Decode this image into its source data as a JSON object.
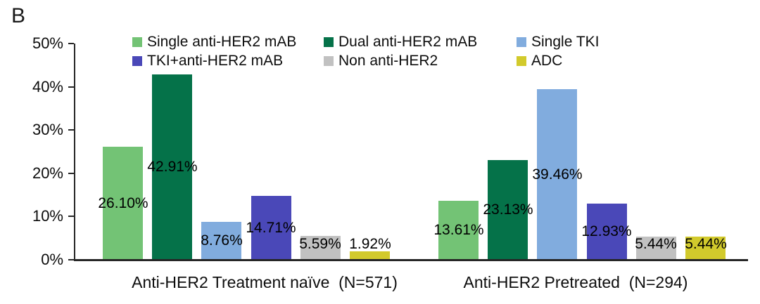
{
  "panel_label": "B",
  "chart_data": {
    "type": "bar",
    "title": "",
    "xlabel": "",
    "ylabel": "",
    "ylim": [
      0,
      50
    ],
    "ytick_labels": [
      "0%",
      "10%",
      "20%",
      "30%",
      "40%",
      "50%"
    ],
    "grid": false,
    "legend_position": "top",
    "categories": [
      "Anti-HER2 Treatment naïve  (N=571)",
      "Anti-HER2 Pretreated  (N=294)"
    ],
    "series": [
      {
        "name": "Single anti-HER2 mAB",
        "color": "#73C375",
        "values": [
          26.1,
          13.61
        ],
        "labels": [
          "26.10%",
          "13.61%"
        ]
      },
      {
        "name": "Dual anti-HER2 mAB",
        "color": "#057249",
        "values": [
          42.91,
          23.13
        ],
        "labels": [
          "42.91%",
          "23.13%"
        ]
      },
      {
        "name": "Single TKI",
        "color": "#81ACDE",
        "values": [
          8.76,
          39.46
        ],
        "labels": [
          "8.76%",
          "39.46%"
        ]
      },
      {
        "name": "TKI+anti-HER2 mAB",
        "color": "#4A48B8",
        "values": [
          14.71,
          12.93
        ],
        "labels": [
          "14.71%",
          "12.93%"
        ]
      },
      {
        "name": "Non anti-HER2",
        "color": "#C1C1C1",
        "values": [
          5.59,
          5.44
        ],
        "labels": [
          "5.59%",
          "5.44%"
        ]
      },
      {
        "name": "ADC",
        "color": "#D2CA2C",
        "values": [
          1.92,
          5.44
        ],
        "labels": [
          "1.92%",
          "5.44%"
        ]
      }
    ]
  }
}
